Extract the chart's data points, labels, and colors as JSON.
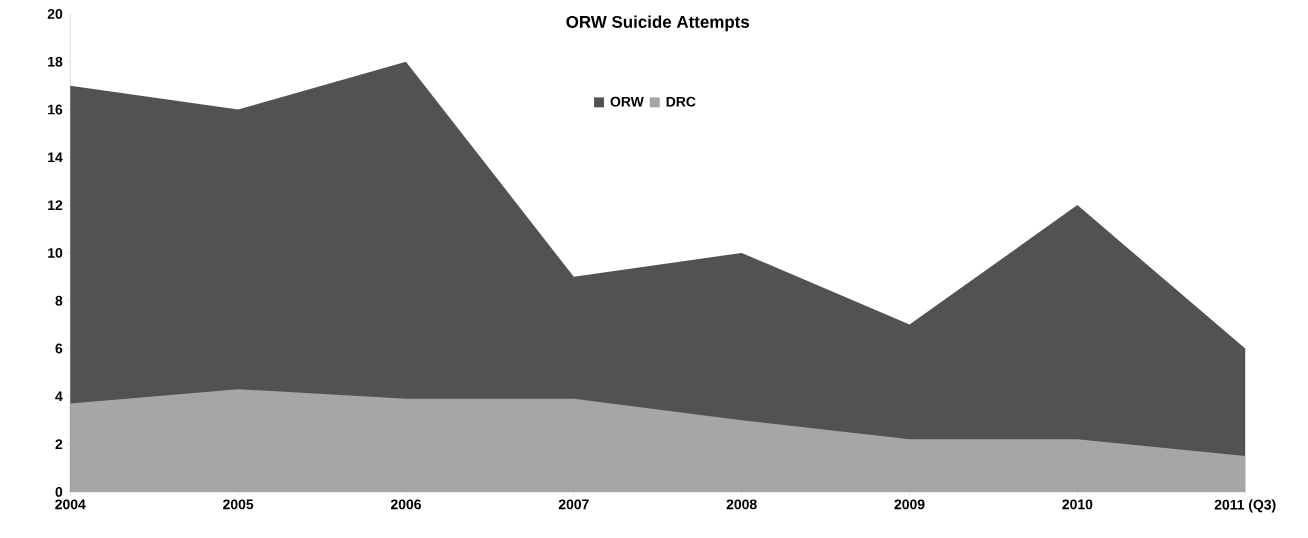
{
  "chart_data": {
    "type": "area",
    "title": "ORW Suicide Attempts",
    "categories": [
      "2004",
      "2005",
      "2006",
      "2007",
      "2008",
      "2009",
      "2010",
      "2011 (Q3)"
    ],
    "series": [
      {
        "name": "ORW",
        "color": "#525252",
        "values": [
          17,
          16,
          18,
          9,
          10,
          7,
          12,
          6
        ]
      },
      {
        "name": "DRC",
        "color": "#a6a6a6",
        "values": [
          3.7,
          4.3,
          3.9,
          3.9,
          3.0,
          2.2,
          2.2,
          1.5
        ]
      }
    ],
    "ylim": [
      0,
      20
    ],
    "yticks": [
      0,
      2,
      4,
      6,
      8,
      10,
      12,
      14,
      16,
      18,
      20
    ],
    "grid": false,
    "legend": "top"
  }
}
